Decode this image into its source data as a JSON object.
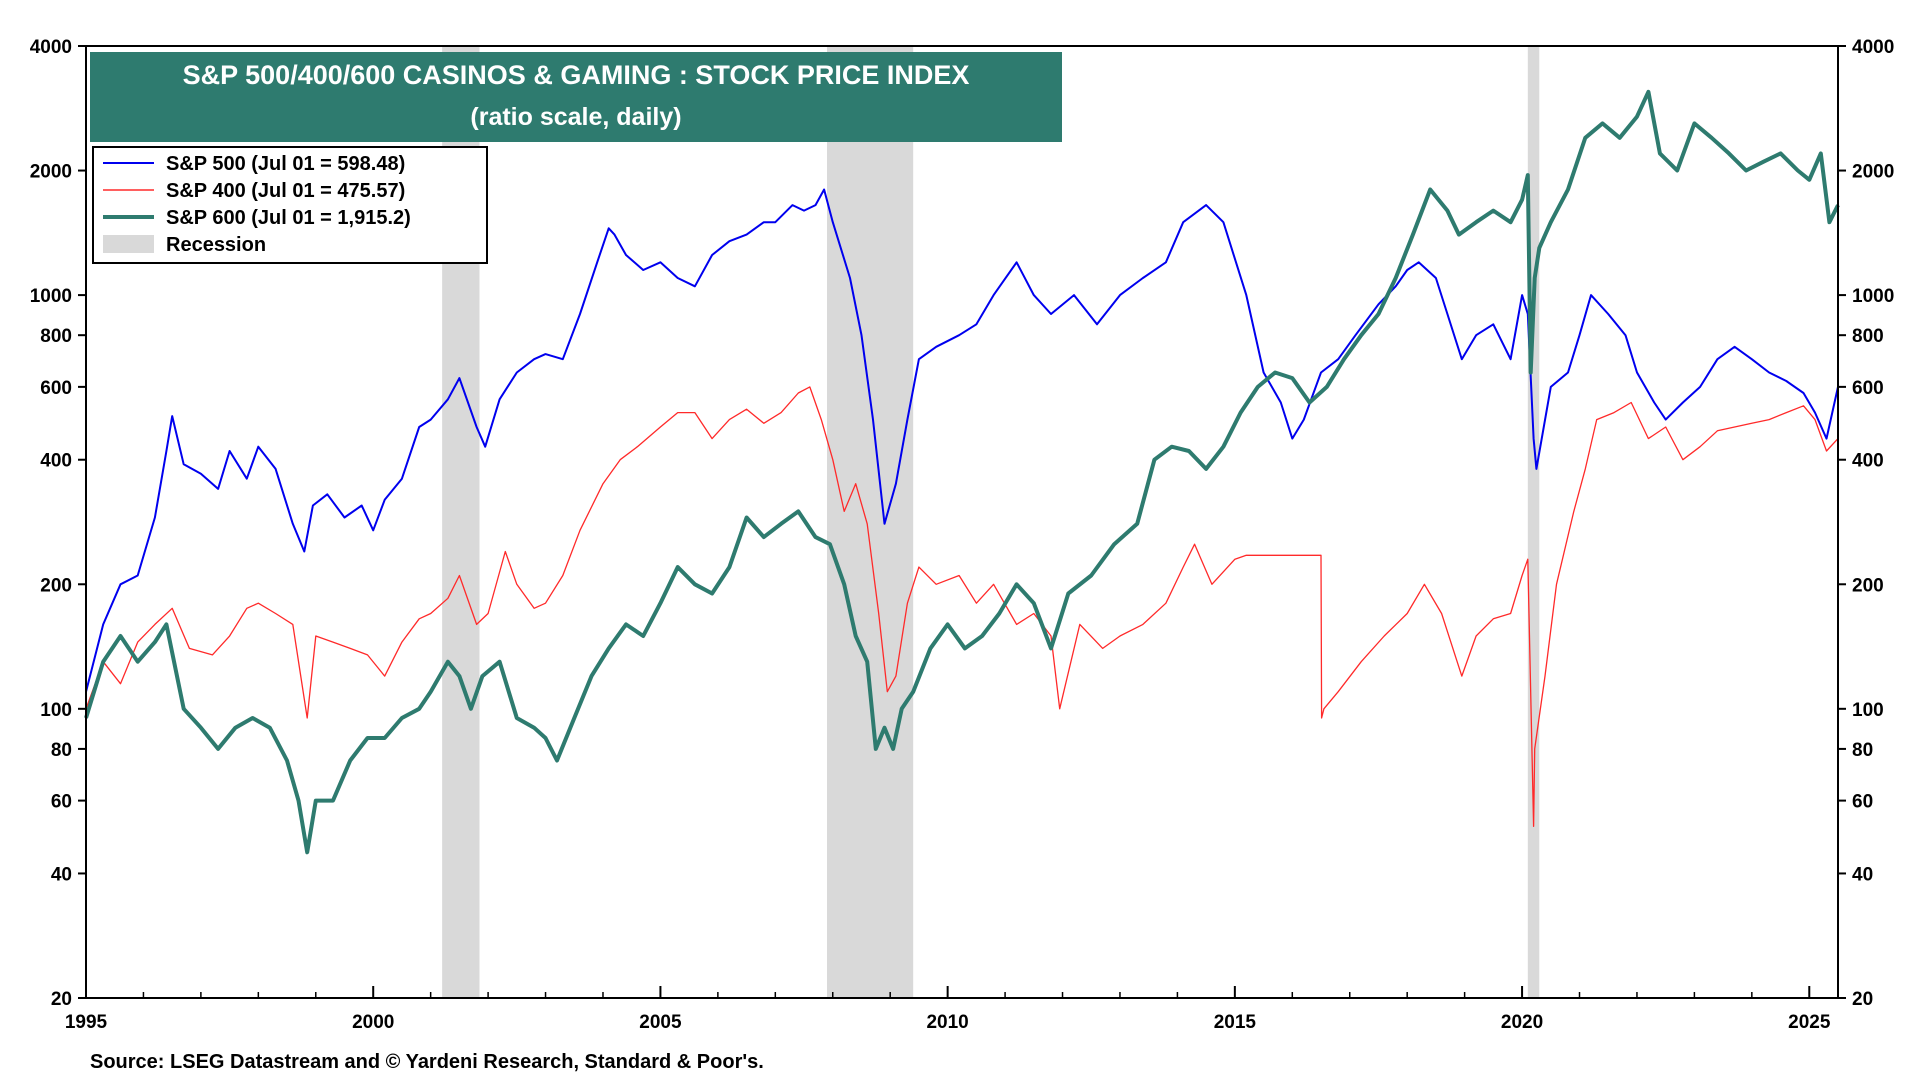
{
  "chart_data": {
    "type": "line",
    "title": "S&P 500/400/600 CASINOS & GAMING : STOCK PRICE INDEX",
    "subtitle": "(ratio scale, daily)",
    "source": "Source: LSEG Datastream and © Yardeni Research, Standard & Poor's.",
    "scale": "log",
    "grid": false,
    "legend_position": "top-left",
    "ylim": [
      20,
      4000
    ],
    "xlim": [
      1995,
      2025.5
    ],
    "y_ticks": [
      20,
      40,
      60,
      80,
      100,
      200,
      400,
      600,
      800,
      1000,
      2000,
      4000
    ],
    "x_ticks": [
      1995,
      2000,
      2005,
      2010,
      2015,
      2020,
      2025
    ],
    "recessions": [
      {
        "start": 2001.2,
        "end": 2001.85
      },
      {
        "start": 2007.9,
        "end": 2009.4
      },
      {
        "start": 2020.1,
        "end": 2020.3
      }
    ],
    "recession_label": "Recession",
    "series": [
      {
        "name": "S&P 500 (Jul 01 = 598.48)",
        "color": "#0000ee",
        "x": [
          1995.0,
          1995.3,
          1995.6,
          1995.9,
          1996.2,
          1996.4,
          1996.5,
          1996.7,
          1997.0,
          1997.3,
          1997.5,
          1997.8,
          1998.0,
          1998.3,
          1998.6,
          1998.8,
          1998.95,
          1999.2,
          1999.5,
          1999.8,
          2000.0,
          2000.2,
          2000.5,
          2000.8,
          2001.0,
          2001.3,
          2001.5,
          2001.8,
          2001.95,
          2002.2,
          2002.5,
          2002.8,
          2003.0,
          2003.3,
          2003.6,
          2003.9,
          2004.1,
          2004.2,
          2004.4,
          2004.7,
          2005.0,
          2005.3,
          2005.6,
          2005.9,
          2006.2,
          2006.5,
          2006.8,
          2007.0,
          2007.3,
          2007.5,
          2007.7,
          2007.85,
          2008.0,
          2008.3,
          2008.5,
          2008.7,
          2008.9,
          2009.1,
          2009.3,
          2009.5,
          2009.8,
          2010.2,
          2010.5,
          2010.8,
          2011.2,
          2011.5,
          2011.8,
          2012.2,
          2012.6,
          2013.0,
          2013.4,
          2013.8,
          2014.1,
          2014.5,
          2014.8,
          2015.2,
          2015.5,
          2015.8,
          2016.0,
          2016.2,
          2016.5,
          2016.8,
          2017.1,
          2017.5,
          2017.8,
          2018.0,
          2018.2,
          2018.5,
          2018.7,
          2018.95,
          2019.2,
          2019.5,
          2019.8,
          2020.0,
          2020.1,
          2020.2,
          2020.25,
          2020.5,
          2020.8,
          2021.0,
          2021.2,
          2021.5,
          2021.8,
          2022.0,
          2022.3,
          2022.5,
          2022.8,
          2023.1,
          2023.4,
          2023.7,
          2024.0,
          2024.3,
          2024.6,
          2024.9,
          2025.1,
          2025.3,
          2025.5
        ],
        "values": [
          110,
          160,
          200,
          210,
          290,
          420,
          510,
          390,
          370,
          340,
          420,
          360,
          430,
          380,
          280,
          240,
          310,
          330,
          290,
          310,
          270,
          320,
          360,
          480,
          500,
          560,
          630,
          480,
          430,
          560,
          650,
          700,
          720,
          700,
          900,
          1200,
          1450,
          1400,
          1250,
          1150,
          1200,
          1100,
          1050,
          1250,
          1350,
          1400,
          1500,
          1500,
          1650,
          1600,
          1650,
          1800,
          1500,
          1100,
          800,
          500,
          280,
          350,
          500,
          700,
          750,
          800,
          850,
          1000,
          1200,
          1000,
          900,
          1000,
          850,
          1000,
          1100,
          1200,
          1500,
          1650,
          1500,
          1000,
          650,
          550,
          450,
          500,
          650,
          700,
          800,
          950,
          1050,
          1150,
          1200,
          1100,
          900,
          700,
          800,
          850,
          700,
          1000,
          900,
          450,
          380,
          600,
          650,
          800,
          1000,
          900,
          800,
          650,
          550,
          500,
          550,
          600,
          700,
          750,
          700,
          650,
          620,
          580,
          520,
          450,
          600
        ]
      },
      {
        "name": "S&P 400 (Jul 01 = 475.57)",
        "color": "#ff2a2a",
        "x": [
          1995.0,
          1995.3,
          1995.6,
          1995.9,
          1996.2,
          1996.5,
          1996.8,
          1997.2,
          1997.5,
          1997.8,
          1998.0,
          1998.3,
          1998.6,
          1998.85,
          1999.0,
          1999.3,
          1999.6,
          1999.9,
          2000.2,
          2000.5,
          2000.8,
          2001.0,
          2001.3,
          2001.5,
          2001.8,
          2002.0,
          2002.3,
          2002.5,
          2002.8,
          2003.0,
          2003.3,
          2003.6,
          2004.0,
          2004.3,
          2004.6,
          2005.0,
          2005.3,
          2005.6,
          2005.9,
          2006.2,
          2006.5,
          2006.8,
          2007.1,
          2007.4,
          2007.6,
          2007.8,
          2008.0,
          2008.2,
          2008.4,
          2008.6,
          2008.8,
          2008.95,
          2009.1,
          2009.3,
          2009.5,
          2009.8,
          2010.2,
          2010.5,
          2010.8,
          2011.2,
          2011.5,
          2011.8,
          2011.95,
          2012.3,
          2012.7,
          2013.0,
          2013.4,
          2013.8,
          2014.1,
          2014.3,
          2014.6,
          2015.0,
          2015.2,
          2015.5,
          2015.8,
          2016.2,
          2016.5,
          2016.51,
          2016.55,
          2016.8,
          2017.2,
          2017.6,
          2018.0,
          2018.3,
          2018.6,
          2018.95,
          2019.2,
          2019.5,
          2019.8,
          2020.0,
          2020.1,
          2020.2,
          2020.22,
          2020.4,
          2020.6,
          2020.9,
          2021.1,
          2021.3,
          2021.6,
          2021.9,
          2022.2,
          2022.5,
          2022.8,
          2023.1,
          2023.4,
          2023.7,
          2024.0,
          2024.3,
          2024.6,
          2024.9,
          2025.1,
          2025.3,
          2025.5
        ],
        "values": [
          100,
          130,
          115,
          145,
          160,
          175,
          140,
          135,
          150,
          175,
          180,
          170,
          160,
          95,
          150,
          145,
          140,
          135,
          120,
          145,
          165,
          170,
          185,
          210,
          160,
          170,
          240,
          200,
          175,
          180,
          210,
          270,
          350,
          400,
          430,
          480,
          520,
          520,
          450,
          500,
          530,
          490,
          520,
          580,
          600,
          500,
          400,
          300,
          350,
          280,
          170,
          110,
          120,
          180,
          220,
          200,
          210,
          180,
          200,
          160,
          170,
          150,
          100,
          160,
          140,
          150,
          160,
          180,
          220,
          250,
          200,
          230,
          235,
          235,
          235,
          235,
          235,
          95,
          100,
          110,
          130,
          150,
          170,
          200,
          170,
          120,
          150,
          165,
          170,
          210,
          230,
          52,
          80,
          120,
          200,
          300,
          380,
          500,
          520,
          550,
          450,
          480,
          400,
          430,
          470,
          480,
          490,
          500,
          520,
          540,
          500,
          420,
          450
        ]
      },
      {
        "name": "S&P 600 (Jul 01 = 1,915.2)",
        "color": "#2e7b6f",
        "x": [
          1995.0,
          1995.3,
          1995.6,
          1995.9,
          1996.2,
          1996.4,
          1996.7,
          1997.0,
          1997.3,
          1997.6,
          1997.9,
          1998.2,
          1998.5,
          1998.7,
          1998.85,
          1999.0,
          1999.3,
          1999.6,
          1999.9,
          2000.2,
          2000.5,
          2000.8,
          2001.0,
          2001.3,
          2001.5,
          2001.7,
          2001.9,
          2002.2,
          2002.5,
          2002.8,
          2003.0,
          2003.2,
          2003.5,
          2003.8,
          2004.1,
          2004.4,
          2004.7,
          2005.0,
          2005.3,
          2005.6,
          2005.9,
          2006.2,
          2006.5,
          2006.8,
          2007.1,
          2007.4,
          2007.7,
          2007.95,
          2008.2,
          2008.4,
          2008.6,
          2008.75,
          2008.9,
          2009.05,
          2009.2,
          2009.4,
          2009.7,
          2010.0,
          2010.3,
          2010.6,
          2010.9,
          2011.2,
          2011.5,
          2011.8,
          2012.1,
          2012.5,
          2012.9,
          2013.3,
          2013.6,
          2013.9,
          2014.2,
          2014.5,
          2014.8,
          2015.1,
          2015.4,
          2015.7,
          2016.0,
          2016.3,
          2016.6,
          2016.9,
          2017.2,
          2017.5,
          2017.8,
          2018.1,
          2018.4,
          2018.7,
          2018.9,
          2019.2,
          2019.5,
          2019.8,
          2020.0,
          2020.1,
          2020.15,
          2020.22,
          2020.3,
          2020.5,
          2020.8,
          2021.1,
          2021.4,
          2021.7,
          2022.0,
          2022.2,
          2022.4,
          2022.7,
          2023.0,
          2023.3,
          2023.6,
          2023.9,
          2024.2,
          2024.5,
          2024.8,
          2025.0,
          2025.2,
          2025.35,
          2025.5
        ],
        "values": [
          95,
          130,
          150,
          130,
          145,
          160,
          100,
          90,
          80,
          90,
          95,
          90,
          75,
          60,
          45,
          60,
          60,
          75,
          85,
          85,
          95,
          100,
          110,
          130,
          120,
          100,
          120,
          130,
          95,
          90,
          85,
          75,
          95,
          120,
          140,
          160,
          150,
          180,
          220,
          200,
          190,
          220,
          290,
          260,
          280,
          300,
          260,
          250,
          200,
          150,
          130,
          80,
          90,
          80,
          100,
          110,
          140,
          160,
          140,
          150,
          170,
          200,
          180,
          140,
          190,
          210,
          250,
          280,
          400,
          430,
          420,
          380,
          430,
          520,
          600,
          650,
          630,
          550,
          600,
          700,
          800,
          900,
          1100,
          1400,
          1800,
          1600,
          1400,
          1500,
          1600,
          1500,
          1700,
          1950,
          650,
          1100,
          1300,
          1500,
          1800,
          2400,
          2600,
          2400,
          2700,
          3100,
          2200,
          2000,
          2600,
          2400,
          2200,
          2000,
          2100,
          2200,
          2000,
          1900,
          2200,
          1500,
          1650
        ]
      }
    ]
  }
}
